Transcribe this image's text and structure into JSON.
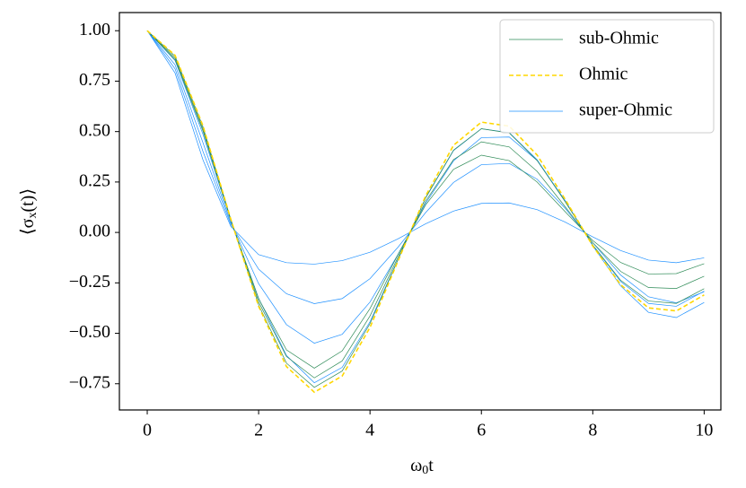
{
  "chart_data": {
    "type": "line",
    "xlabel": {
      "main": "ω",
      "sub": "0",
      "rest": "t"
    },
    "ylabel": {
      "main": "⟨σ",
      "sub": "x",
      "rest": "(t)⟩"
    },
    "x": [
      0,
      0.5,
      1,
      1.5,
      2,
      2.5,
      3,
      3.5,
      4,
      4.5,
      5,
      5.5,
      6,
      6.5,
      7,
      7.5,
      8,
      8.5,
      9,
      9.5,
      10
    ],
    "series": [
      {
        "name": "sub-Ohmic",
        "color": "#2e8b57",
        "dashed": false,
        "lines": [
          [
            1,
            0.874,
            0.524,
            0.065,
            -0.359,
            -0.648,
            -0.768,
            -0.687,
            -0.452,
            -0.137,
            0.173,
            0.408,
            0.514,
            0.493,
            0.357,
            0.154,
            -0.062,
            -0.237,
            -0.34,
            -0.352,
            -0.279
          ],
          [
            1,
            0.865,
            0.513,
            0.063,
            -0.344,
            -0.615,
            -0.721,
            -0.637,
            -0.414,
            -0.124,
            0.155,
            0.361,
            0.449,
            0.424,
            0.303,
            0.129,
            -0.051,
            -0.193,
            -0.273,
            -0.278,
            -0.217
          ],
          [
            1,
            0.856,
            0.503,
            0.061,
            -0.329,
            -0.582,
            -0.673,
            -0.587,
            -0.377,
            -0.111,
            0.137,
            0.313,
            0.383,
            0.356,
            0.25,
            0.104,
            -0.04,
            -0.149,
            -0.206,
            -0.204,
            -0.155
          ]
        ]
      },
      {
        "name": "Ohmic",
        "color": "#ffd700",
        "dashed": true,
        "lines": [
          [
            1,
            0.878,
            0.529,
            0.066,
            -0.366,
            -0.665,
            -0.792,
            -0.712,
            -0.471,
            -0.143,
            0.182,
            0.432,
            0.547,
            0.527,
            0.384,
            0.166,
            -0.067,
            -0.259,
            -0.374,
            -0.389,
            -0.31
          ]
        ]
      },
      {
        "name": "super-Ohmic",
        "color": "#1e90ff",
        "dashed": false,
        "lines": [
          [
            1,
            0.79,
            0.36,
            0.03,
            -0.11,
            -0.15,
            -0.157,
            -0.14,
            -0.098,
            -0.032,
            0.043,
            0.106,
            0.144,
            0.146,
            0.113,
            0.052,
            -0.022,
            -0.09,
            -0.137,
            -0.15,
            -0.126
          ],
          [
            1,
            0.811,
            0.402,
            0.04,
            -0.182,
            -0.304,
            -0.353,
            -0.328,
            -0.229,
            -0.074,
            0.099,
            0.248,
            0.336,
            0.342,
            0.264,
            0.121,
            -0.051,
            -0.211,
            -0.319,
            -0.349,
            -0.294
          ],
          [
            1,
            0.831,
            0.445,
            0.049,
            -0.254,
            -0.457,
            -0.549,
            -0.505,
            -0.345,
            -0.11,
            0.145,
            0.355,
            0.47,
            0.473,
            0.357,
            0.16,
            -0.066,
            -0.265,
            -0.396,
            -0.422,
            -0.347
          ],
          [
            1,
            0.852,
            0.487,
            0.059,
            -0.326,
            -0.61,
            -0.745,
            -0.669,
            -0.443,
            -0.134,
            0.171,
            0.406,
            0.514,
            0.495,
            0.361,
            0.156,
            -0.063,
            -0.243,
            -0.352,
            -0.366,
            -0.291
          ]
        ]
      }
    ],
    "draw_order": [
      2,
      0,
      1
    ],
    "xlim": [
      -0.5,
      10.3
    ],
    "ylim": [
      -0.88,
      1.09
    ],
    "xticks": [
      0,
      2,
      4,
      6,
      8,
      10
    ],
    "yticks": [
      {
        "value": 1,
        "label": "1.00"
      },
      {
        "value": 0.75,
        "label": "0.75"
      },
      {
        "value": 0.5,
        "label": "0.50"
      },
      {
        "value": 0.25,
        "label": "0.25"
      },
      {
        "value": 0,
        "label": "0.00"
      },
      {
        "value": -0.25,
        "label": "−0.25"
      },
      {
        "value": -0.5,
        "label": "−0.50"
      },
      {
        "value": -0.75,
        "label": "−0.75"
      }
    ],
    "grid": false,
    "legend": "upper right"
  }
}
